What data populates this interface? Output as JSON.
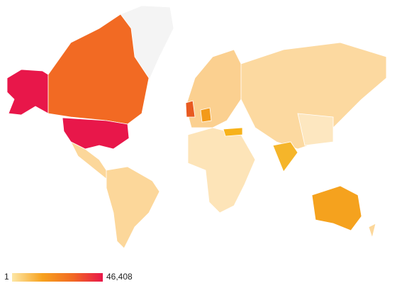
{
  "legend": {
    "min": 1,
    "max": {
      "value": 46408,
      "label": "46,408"
    },
    "colors": [
      "#fde7a6",
      "#f7a21e",
      "#f26a23",
      "#e8174a"
    ]
  }
}
